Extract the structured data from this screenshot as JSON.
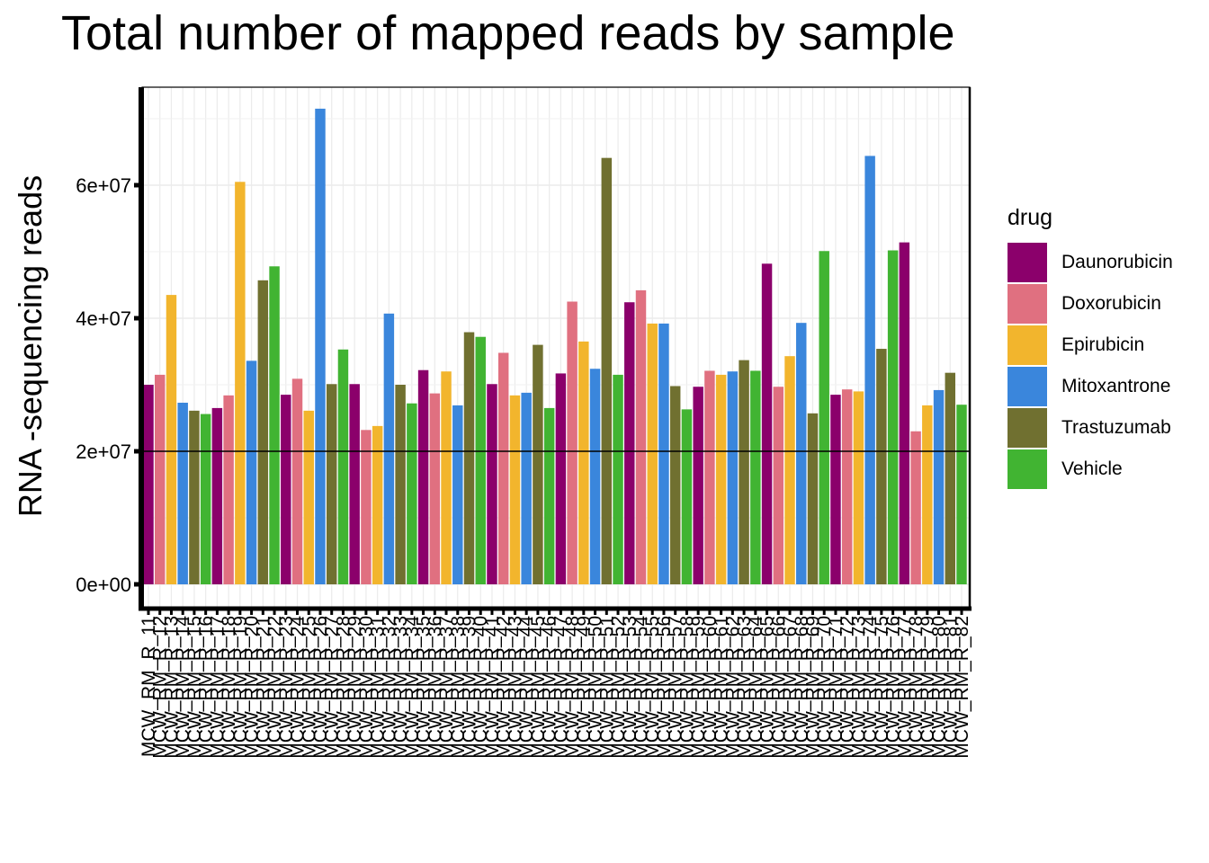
{
  "chart_data": {
    "type": "bar",
    "title": "Total number of mapped reads by sample",
    "ylabel": "RNA -sequencing reads",
    "xlabel": "",
    "ylim": [
      0,
      75000000
    ],
    "yticks": [
      0,
      20000000,
      40000000,
      60000000
    ],
    "ytick_labels": [
      "0e+00",
      "2e+07",
      "4e+07",
      "6e+07"
    ],
    "reference_line": 20000000,
    "grid": true,
    "legend_title": "drug",
    "legend_position": "right",
    "legend": [
      "Daunorubicin",
      "Doxorubicin",
      "Epirubicin",
      "Mitoxantrone",
      "Trastuzumab",
      "Vehicle"
    ],
    "colors": {
      "Daunorubicin": "#8B006B",
      "Doxorubicin": "#E07080",
      "Epirubicin": "#F2B52D",
      "Mitoxantrone": "#3A86DC",
      "Trastuzumab": "#707030",
      "Vehicle": "#41B432"
    },
    "categories": [
      "MCW_RM_R_11",
      "MCW_RM_R_12",
      "MCW_RM_R_13",
      "MCW_RM_R_14",
      "MCW_RM_R_15",
      "MCW_RM_R_16",
      "MCW_RM_R_17",
      "MCW_RM_R_18",
      "MCW_RM_R_19",
      "MCW_RM_R_20",
      "MCW_RM_R_21",
      "MCW_RM_R_22",
      "MCW_RM_R_23",
      "MCW_RM_R_24",
      "MCW_RM_R_25",
      "MCW_RM_R_26",
      "MCW_RM_R_27",
      "MCW_RM_R_28",
      "MCW_RM_R_29",
      "MCW_RM_R_30",
      "MCW_RM_R_31",
      "MCW_RM_R_32",
      "MCW_RM_R_33",
      "MCW_RM_R_34",
      "MCW_RM_R_35",
      "MCW_RM_R_36",
      "MCW_RM_R_37",
      "MCW_RM_R_38",
      "MCW_RM_R_39",
      "MCW_RM_R_40",
      "MCW_RM_R_41",
      "MCW_RM_R_42",
      "MCW_RM_R_43",
      "MCW_RM_R_44",
      "MCW_RM_R_45",
      "MCW_RM_R_46",
      "MCW_RM_R_47",
      "MCW_RM_R_48",
      "MCW_RM_R_49",
      "MCW_RM_R_50",
      "MCW_RM_R_51",
      "MCW_RM_R_52",
      "MCW_RM_R_53",
      "MCW_RM_R_54",
      "MCW_RM_R_55",
      "MCW_RM_R_56",
      "MCW_RM_R_57",
      "MCW_RM_R_58",
      "MCW_RM_R_59",
      "MCW_RM_R_60",
      "MCW_RM_R_61",
      "MCW_RM_R_62",
      "MCW_RM_R_63",
      "MCW_RM_R_64",
      "MCW_RM_R_65",
      "MCW_RM_R_66",
      "MCW_RM_R_67",
      "MCW_RM_R_68",
      "MCW_RM_R_69",
      "MCW_RM_R_70",
      "MCW_RM_R_71",
      "MCW_RM_R_72",
      "MCW_RM_R_73",
      "MCW_RM_R_74",
      "MCW_RM_R_75",
      "MCW_RM_R_76",
      "MCW_RM_R_77",
      "MCW_RM_R_78",
      "MCW_RM_R_79",
      "MCW_RM_R_80",
      "MCW_RM_R_81",
      "MCW_RM_R_82"
    ],
    "values": [
      30000000,
      31500000,
      43500000,
      27300000,
      26100000,
      25600000,
      26500000,
      28400000,
      60500000,
      33600000,
      45700000,
      47800000,
      28500000,
      30900000,
      26100000,
      71500000,
      30100000,
      35300000,
      30100000,
      23200000,
      23800000,
      40700000,
      30000000,
      27200000,
      32200000,
      28700000,
      32000000,
      26900000,
      37900000,
      37200000,
      30100000,
      34800000,
      28400000,
      28800000,
      36000000,
      26500000,
      31700000,
      42500000,
      36500000,
      32400000,
      64100000,
      31500000,
      42400000,
      44200000,
      39200000,
      39200000,
      29800000,
      26300000,
      29700000,
      32100000,
      31500000,
      32000000,
      33700000,
      32100000,
      48200000,
      29700000,
      34300000,
      39300000,
      25700000,
      50100000,
      28500000,
      29300000,
      29000000,
      64400000,
      35400000,
      50200000,
      51400000,
      23000000,
      26900000,
      29200000,
      31800000,
      27000000
    ],
    "drugs": [
      "Daunorubicin",
      "Doxorubicin",
      "Epirubicin",
      "Mitoxantrone",
      "Trastuzumab",
      "Vehicle",
      "Daunorubicin",
      "Doxorubicin",
      "Epirubicin",
      "Mitoxantrone",
      "Trastuzumab",
      "Vehicle",
      "Daunorubicin",
      "Doxorubicin",
      "Epirubicin",
      "Mitoxantrone",
      "Trastuzumab",
      "Vehicle",
      "Daunorubicin",
      "Doxorubicin",
      "Epirubicin",
      "Mitoxantrone",
      "Trastuzumab",
      "Vehicle",
      "Daunorubicin",
      "Doxorubicin",
      "Epirubicin",
      "Mitoxantrone",
      "Trastuzumab",
      "Vehicle",
      "Daunorubicin",
      "Doxorubicin",
      "Epirubicin",
      "Mitoxantrone",
      "Trastuzumab",
      "Vehicle",
      "Daunorubicin",
      "Doxorubicin",
      "Epirubicin",
      "Mitoxantrone",
      "Trastuzumab",
      "Vehicle",
      "Daunorubicin",
      "Doxorubicin",
      "Epirubicin",
      "Mitoxantrone",
      "Trastuzumab",
      "Vehicle",
      "Daunorubicin",
      "Doxorubicin",
      "Epirubicin",
      "Mitoxantrone",
      "Trastuzumab",
      "Vehicle",
      "Daunorubicin",
      "Doxorubicin",
      "Epirubicin",
      "Mitoxantrone",
      "Trastuzumab",
      "Vehicle",
      "Daunorubicin",
      "Doxorubicin",
      "Epirubicin",
      "Mitoxantrone",
      "Trastuzumab",
      "Vehicle",
      "Daunorubicin",
      "Doxorubicin",
      "Epirubicin",
      "Mitoxantrone",
      "Trastuzumab",
      "Vehicle"
    ]
  }
}
